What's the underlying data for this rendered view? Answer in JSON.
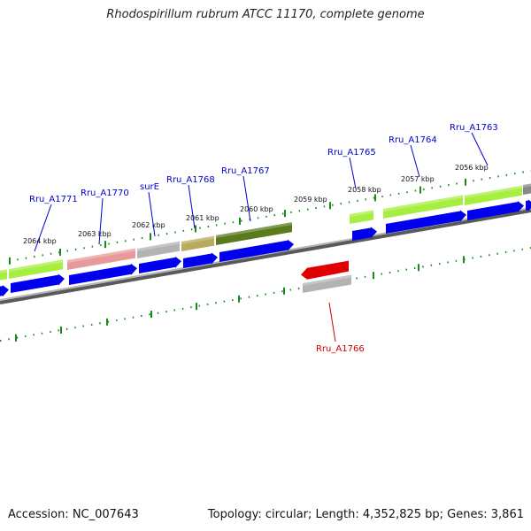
{
  "title": "Rhodospirillum rubrum ATCC 11170, complete genome",
  "footer": {
    "accession": "Accession: NC_007643",
    "topology": "Topology: circular; Length: 4,352,825 bp; Genes: 3,861"
  },
  "colors": {
    "blue_arrow": "#0000ee",
    "ring_track": "#888888",
    "tick": "#1a8a1a",
    "label_blue": "#0000cc",
    "label_red": "#cc0000",
    "green_light": "#a6ef40",
    "green_dark": "#5b7a1c",
    "pink": "#e89a9a",
    "gray": "#b3b3b3",
    "khaki": "#b9a961",
    "red": "#e00000"
  },
  "kbp_labels": [
    "2064 kbp",
    "2063 kbp",
    "2062 kbp",
    "2061 kbp",
    "2060 kbp",
    "2059 kbp",
    "2058 kbp",
    "2057 kbp",
    "2056 kbp"
  ],
  "genes_forward": [
    {
      "name": "Rru_A1771",
      "color": "green_light"
    },
    {
      "name": "Rru_A1770",
      "color": "pink"
    },
    {
      "name": "surE",
      "color": "gray"
    },
    {
      "name": "Rru_A1768",
      "color": "khaki"
    },
    {
      "name": "Rru_A1767",
      "color": "green_dark"
    },
    {
      "name": "Rru_A1765",
      "color": "green_light"
    },
    {
      "name": "Rru_A1764",
      "color": "green_light"
    },
    {
      "name": "Rru_A1763",
      "color": "green_light"
    }
  ],
  "genes_reverse": [
    {
      "name": "Rru_A1766",
      "color": "red"
    }
  ]
}
